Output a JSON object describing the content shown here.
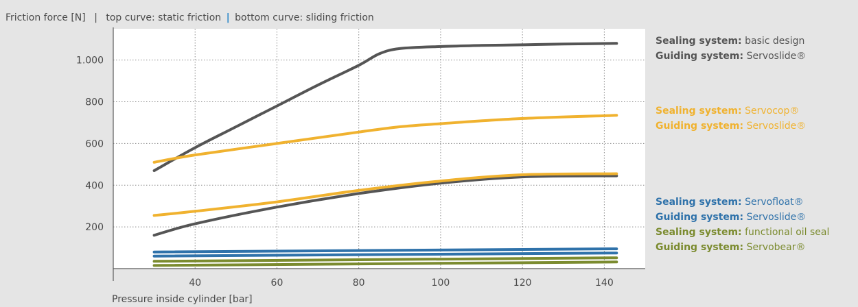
{
  "header": {
    "ylabel": "Friction force [N]",
    "note_prefix": "top curve: static friction",
    "note_sep": "|",
    "note_suffix": "bottom curve: sliding friction"
  },
  "legend": [
    {
      "bold": "Sealing system:",
      "text": "basic design",
      "color": "#555555"
    },
    {
      "bold": "Guiding system:",
      "text": "Servoslide®",
      "color": "#555555"
    },
    {
      "bold": "Sealing system:",
      "text": "Servocop®",
      "color": "#f0b22f"
    },
    {
      "bold": "Guiding system:",
      "text": "Servoslide®",
      "color": "#f0b22f"
    },
    {
      "bold": "Sealing system:",
      "text": "Servofloat®",
      "color": "#2f72aa"
    },
    {
      "bold": "Guiding system:",
      "text": "Servoslide®",
      "color": "#2f72aa"
    },
    {
      "bold": "Sealing system:",
      "text": "functional oil seal",
      "color": "#7b8b2f"
    },
    {
      "bold": "Guiding system:",
      "text": "Servobear®",
      "color": "#7b8b2f"
    }
  ],
  "chart_data": {
    "type": "line",
    "xlabel": "Pressure inside cylinder [bar]",
    "ylabel": "Friction force [N]",
    "xlim": [
      20,
      150
    ],
    "ylim": [
      0,
      1150
    ],
    "xticks": [
      40,
      60,
      80,
      100,
      120,
      140
    ],
    "yticks": [
      200,
      400,
      600,
      800,
      1000
    ],
    "ytick_labels": [
      "200",
      "400",
      "600",
      "800",
      "1.000"
    ],
    "grid": "dotted",
    "series": [
      {
        "color": "#555555",
        "x": [
          30,
          40,
          50,
          60,
          70,
          80,
          85,
          90,
          100,
          110,
          120,
          130,
          143
        ],
        "y": [
          470,
          580,
          680,
          780,
          880,
          975,
          1030,
          1055,
          1065,
          1070,
          1073,
          1077,
          1080
        ]
      },
      {
        "color": "#555555",
        "x": [
          30,
          40,
          60,
          80,
          100,
          120,
          143
        ],
        "y": [
          160,
          215,
          295,
          360,
          410,
          440,
          445
        ]
      },
      {
        "color": "#f0b22f",
        "x": [
          30,
          40,
          60,
          80,
          90,
          100,
          120,
          143
        ],
        "y": [
          510,
          545,
          600,
          655,
          680,
          695,
          720,
          735
        ]
      },
      {
        "color": "#f0b22f",
        "x": [
          30,
          40,
          60,
          80,
          100,
          120,
          143
        ],
        "y": [
          255,
          275,
          320,
          375,
          420,
          450,
          455
        ]
      },
      {
        "color": "#2f72aa",
        "x": [
          30,
          143
        ],
        "y": [
          80,
          95
        ]
      },
      {
        "color": "#2f72aa",
        "x": [
          30,
          143
        ],
        "y": [
          60,
          75
        ]
      },
      {
        "color": "#7b8b2f",
        "x": [
          30,
          143
        ],
        "y": [
          35,
          52
        ]
      },
      {
        "color": "#7b8b2f",
        "x": [
          30,
          143
        ],
        "y": [
          15,
          32
        ]
      }
    ]
  }
}
